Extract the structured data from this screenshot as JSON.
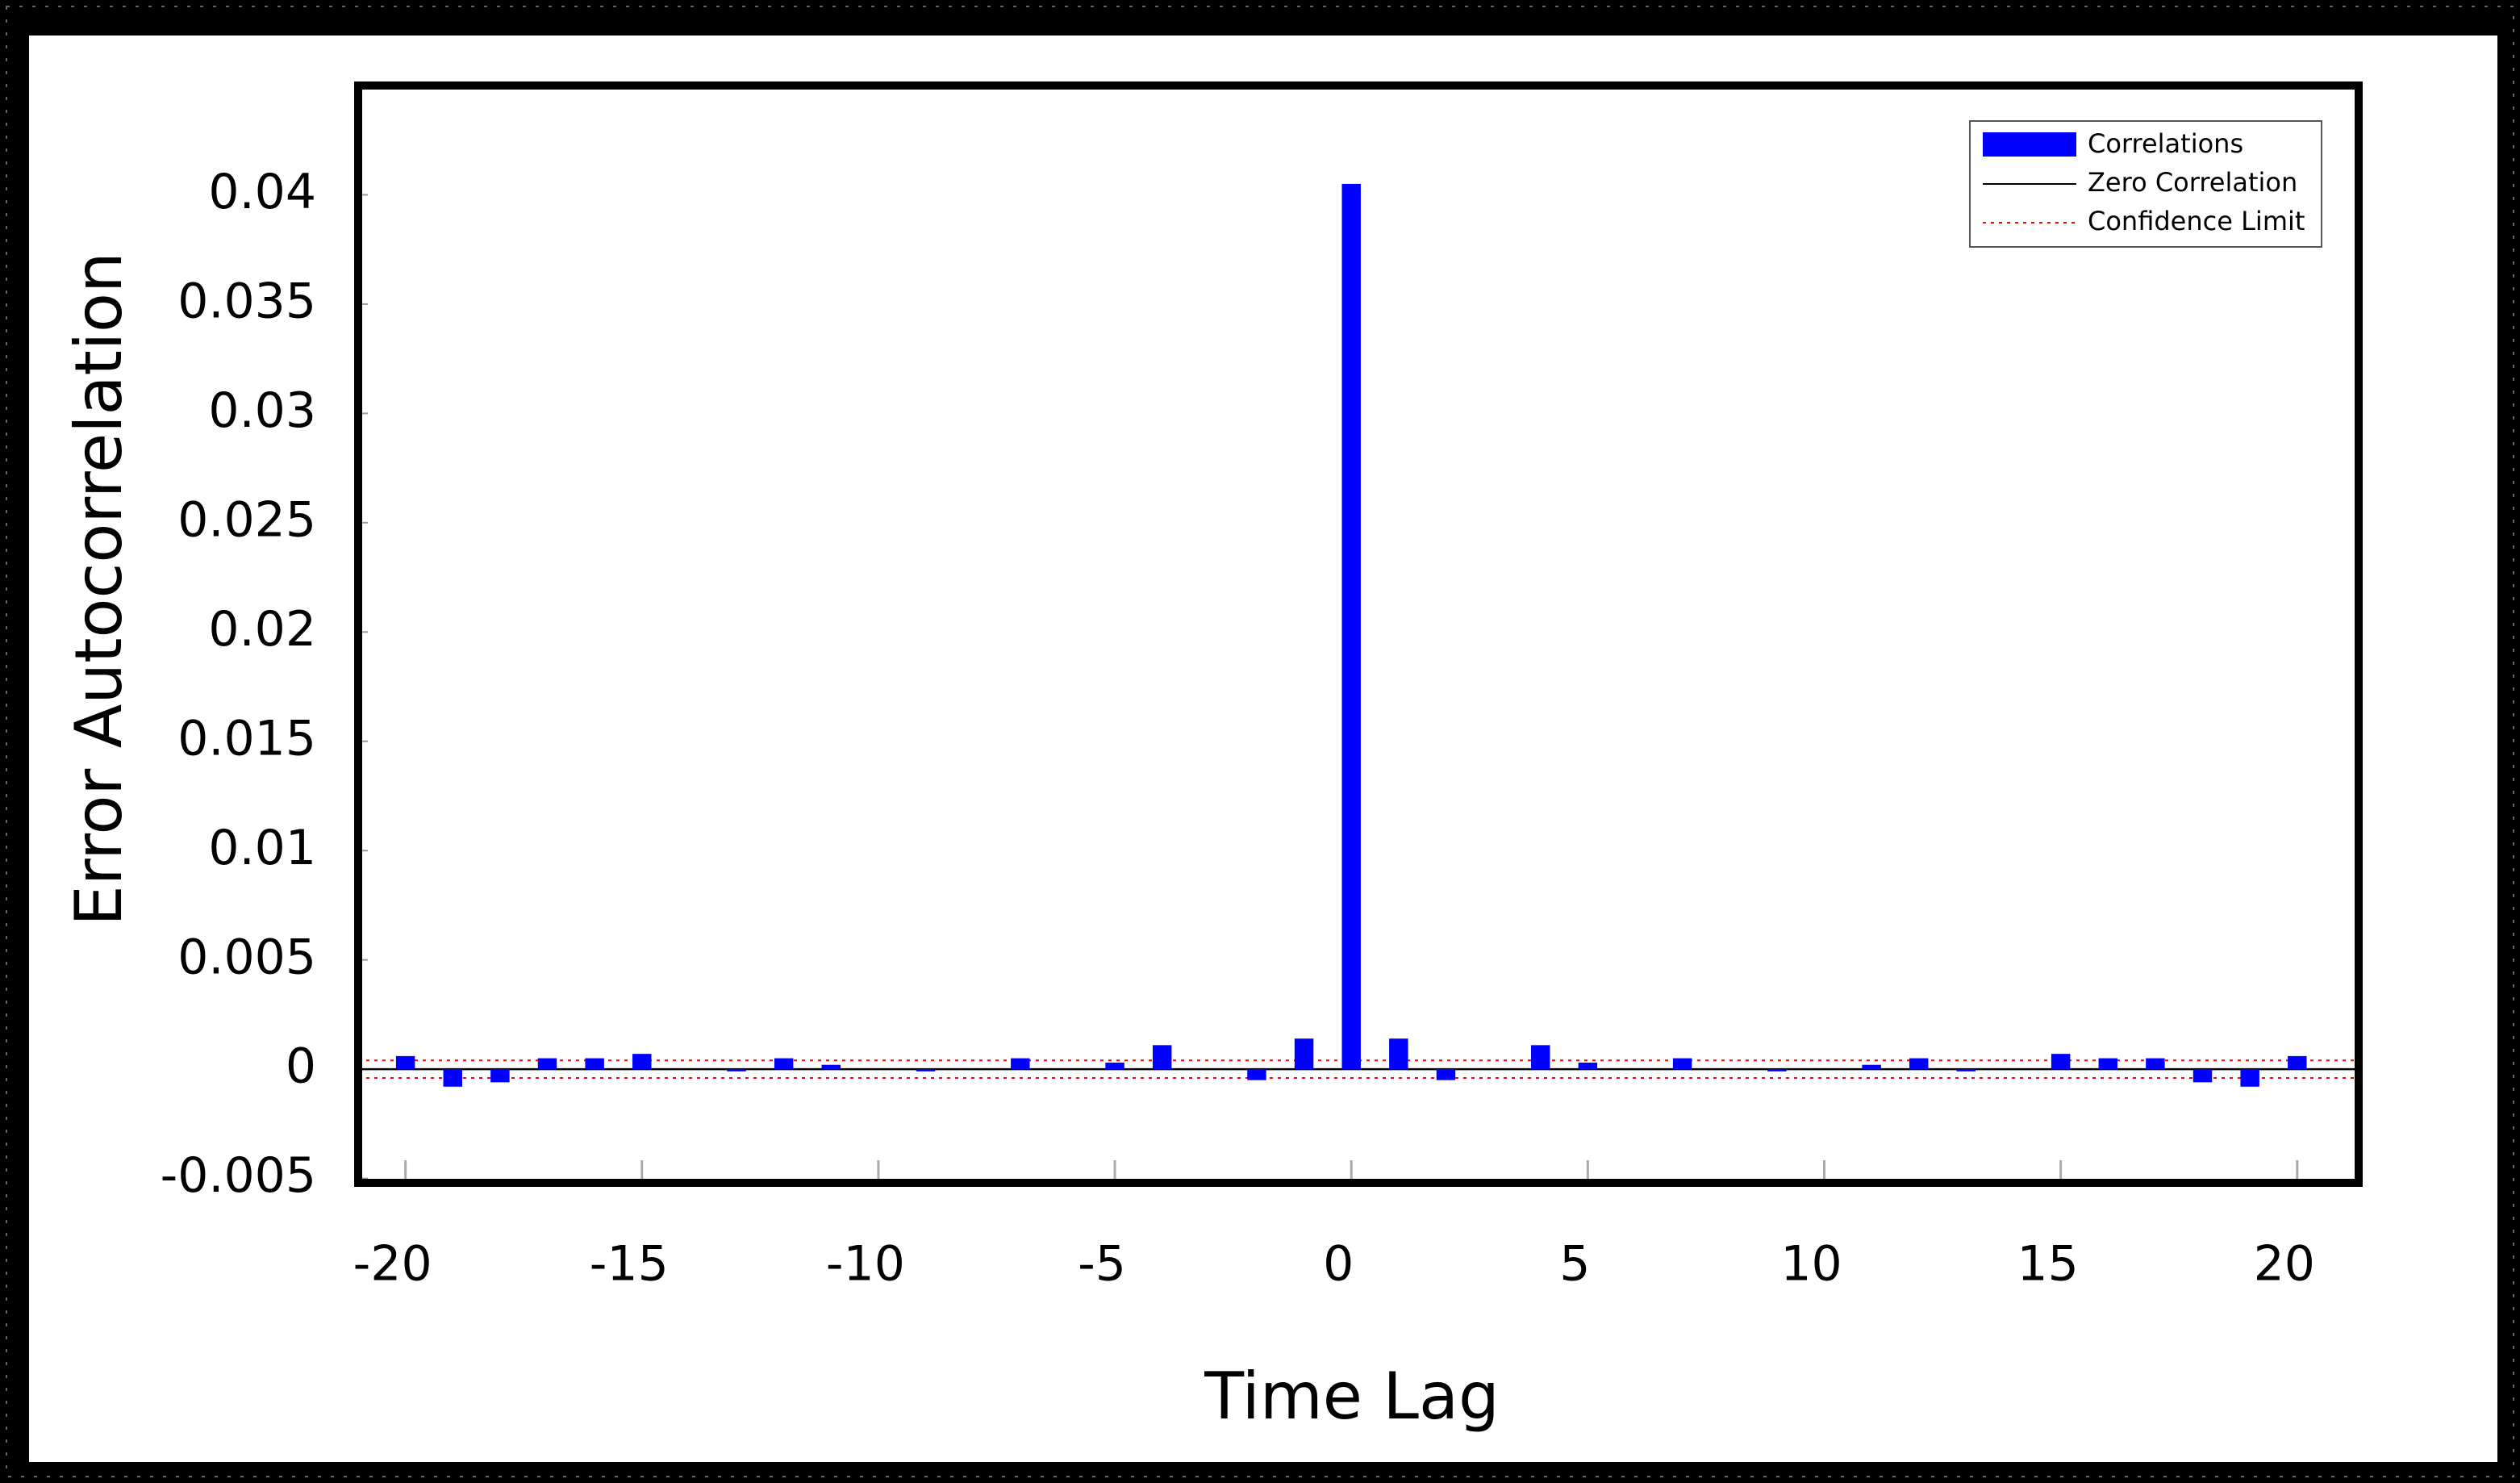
{
  "chart_data": {
    "type": "bar",
    "x_label": "Time Lag",
    "y_label": "Error Autocorrelation",
    "x": [
      -20,
      -19,
      -18,
      -17,
      -16,
      -15,
      -14,
      -13,
      -12,
      -11,
      -10,
      -9,
      -8,
      -7,
      -6,
      -5,
      -4,
      -3,
      -2,
      -1,
      0,
      1,
      2,
      3,
      4,
      5,
      6,
      7,
      8,
      9,
      10,
      11,
      12,
      13,
      14,
      15,
      16,
      17,
      18,
      19,
      20
    ],
    "series": [
      {
        "name": "Correlations",
        "color": "#0000ff",
        "values": [
          0.0006,
          -0.0008,
          -0.0006,
          0.0005,
          0.0005,
          0.0007,
          0,
          -0.0001,
          0.0005,
          0.0002,
          0,
          -0.0001,
          0,
          0.0005,
          0,
          0.0003,
          0.0011,
          0,
          -0.0005,
          0.0014,
          0.0405,
          0.0014,
          -0.0005,
          0,
          0.0011,
          0.0003,
          0,
          0.0005,
          0,
          -0.0001,
          0,
          0.0002,
          0.0005,
          -0.0001,
          0,
          0.0007,
          0.0005,
          0.0005,
          -0.0006,
          -0.0008,
          0.0006
        ]
      }
    ],
    "reference_lines": [
      {
        "name": "Zero Correlation",
        "color": "#000000",
        "values": [
          0
        ]
      },
      {
        "name": "Confidence Limit",
        "color": "#ff0000",
        "values": [
          -0.0004,
          0.0004
        ]
      }
    ],
    "xlim": [
      -21,
      21.3
    ],
    "ylim": [
      -0.0052,
      0.045
    ],
    "xticks": [
      -20,
      -15,
      -10,
      -5,
      0,
      5,
      10,
      15,
      20
    ],
    "yticks": [
      -0.005,
      0,
      0.005,
      0.01,
      0.015,
      0.02,
      0.025,
      0.03,
      0.035,
      0.04
    ],
    "legend": "top-right"
  }
}
